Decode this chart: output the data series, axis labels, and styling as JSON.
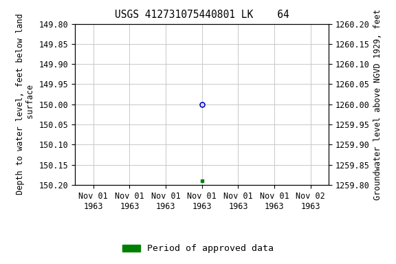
{
  "title": "USGS 412731075440801 LK    64",
  "ylabel_left": "Depth to water level, feet below land\n surface",
  "ylabel_right": "Groundwater level above NGVD 1929, feet",
  "ylim_left": [
    149.8,
    150.2
  ],
  "ylim_right_top": 1260.2,
  "ylim_right_bottom": 1259.8,
  "yticks_left": [
    149.8,
    149.85,
    149.9,
    149.95,
    150.0,
    150.05,
    150.1,
    150.15,
    150.2
  ],
  "yticks_right": [
    1260.2,
    1260.15,
    1260.1,
    1260.05,
    1260.0,
    1259.95,
    1259.9,
    1259.85,
    1259.8
  ],
  "xlim": [
    0,
    7
  ],
  "xtick_positions": [
    0.5,
    1.5,
    2.5,
    3.5,
    4.5,
    5.5,
    6.5
  ],
  "xtick_labels": [
    "Nov 01\n1963",
    "Nov 01\n1963",
    "Nov 01\n1963",
    "Nov 01\n1963",
    "Nov 01\n1963",
    "Nov 01\n1963",
    "Nov 02\n1963"
  ],
  "point1_x": 3.5,
  "point1_y": 150.0,
  "point1_color": "#0000cc",
  "point1_marker": "o",
  "point2_x": 3.5,
  "point2_y": 150.19,
  "point2_color": "#008000",
  "point2_marker": "s",
  "grid_color": "#c8c8c8",
  "background_color": "#ffffff",
  "legend_label": "Period of approved data",
  "legend_color": "#008000",
  "title_fontsize": 10.5,
  "axis_label_fontsize": 8.5,
  "tick_fontsize": 8.5,
  "legend_fontsize": 9.5
}
